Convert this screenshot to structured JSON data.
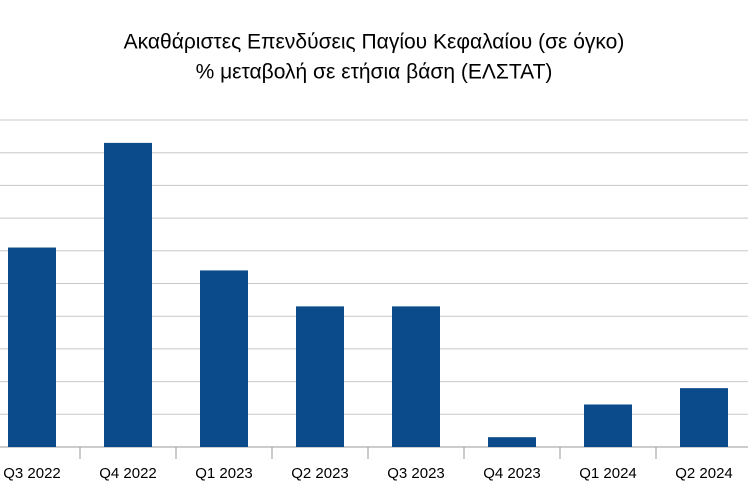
{
  "chart_data": {
    "type": "bar",
    "title": "Ακαθάριστες Επενδύσεις Παγίου Κεφαλαίου (σε όγκο)",
    "subtitle": "% μεταβολή σε ετήσια βάση (ΕΛΣΤΑΤ)",
    "categories": [
      "Q3 2022",
      "Q4 2022",
      "Q1 2023",
      "Q2 2023",
      "Q3 2023",
      "Q4 2023",
      "Q1 2024",
      "Q2 2024"
    ],
    "values": [
      6.1,
      9.3,
      5.4,
      4.3,
      4.3,
      0.3,
      1.3,
      1.8
    ],
    "color": "#0b4a8b",
    "ylim": [
      0,
      10
    ],
    "yticks": [
      0,
      1,
      2,
      3,
      4,
      5,
      6,
      7,
      8,
      9,
      10
    ],
    "grid": true
  }
}
